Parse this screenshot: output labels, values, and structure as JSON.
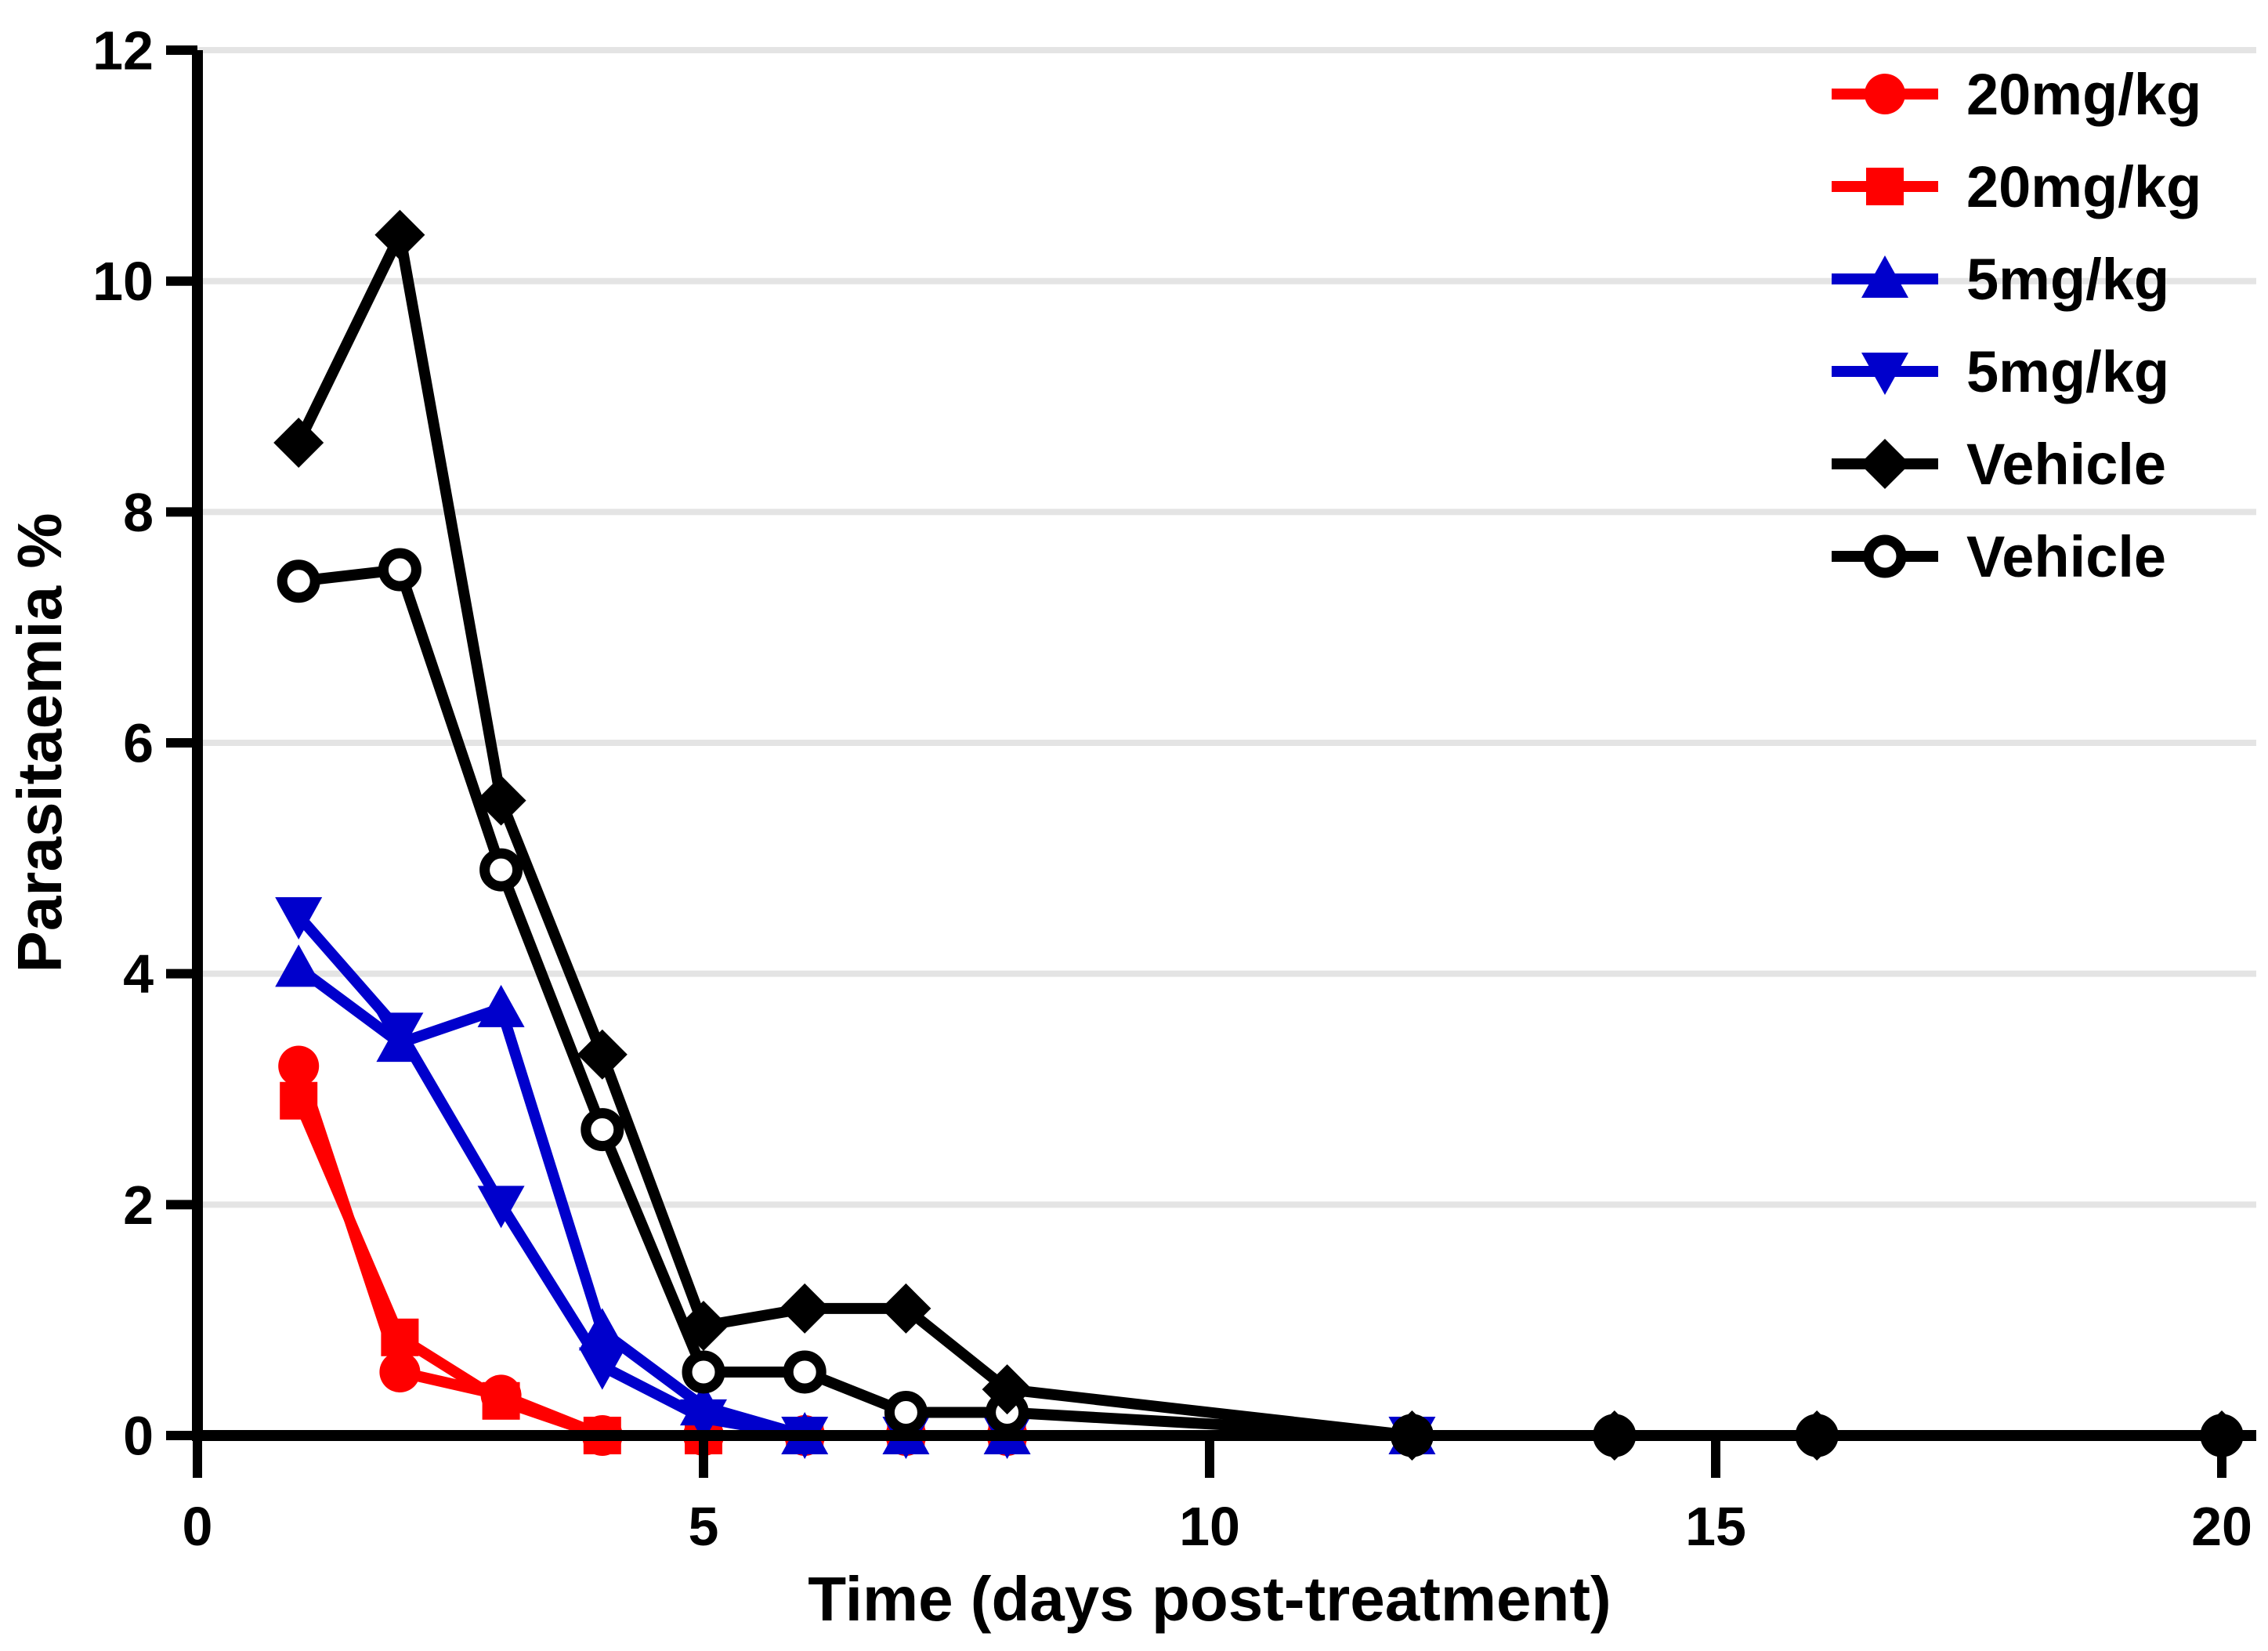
{
  "chart_data": {
    "type": "line",
    "title": "",
    "xlabel": "Time (days post-treatment)",
    "ylabel": "Parasitaemia %",
    "xlim": [
      0,
      20.4
    ],
    "ylim": [
      0,
      12
    ],
    "x_ticks": [
      0,
      5,
      10,
      15,
      20
    ],
    "y_ticks": [
      0,
      2,
      4,
      6,
      8,
      10,
      12
    ],
    "grid": "horizontal-light-gray",
    "gridline_color": "#e4e4e4",
    "axis_color": "#000000",
    "legend_position": "top-right",
    "colors": {
      "red": "#ff0000",
      "blue": "#0000cc",
      "black": "#000000"
    },
    "series": [
      {
        "name": "20mg/kg",
        "marker": "circle",
        "color": "#ff0000",
        "x": [
          1,
          2,
          3,
          4,
          5,
          6,
          7,
          8,
          12
        ],
        "y": [
          3.2,
          0.55,
          0.35,
          0,
          0,
          0,
          0,
          0,
          0
        ]
      },
      {
        "name": "20mg/kg",
        "marker": "square",
        "color": "#ff0000",
        "x": [
          1,
          2,
          3,
          4,
          5,
          6,
          7,
          8,
          12
        ],
        "y": [
          2.9,
          0.85,
          0.3,
          0,
          0,
          0,
          0,
          0,
          0
        ]
      },
      {
        "name": "5mg/kg",
        "marker": "triangle-up",
        "color": "#0000cc",
        "x": [
          1,
          2,
          3,
          4,
          5,
          6,
          7,
          8,
          12
        ],
        "y": [
          4.05,
          3.4,
          3.7,
          0.9,
          0.25,
          0,
          0,
          0,
          0
        ]
      },
      {
        "name": "5mg/kg",
        "marker": "triangle-down",
        "color": "#0000cc",
        "x": [
          1,
          2,
          3,
          4,
          5,
          6,
          7,
          8,
          12
        ],
        "y": [
          4.5,
          3.5,
          2.0,
          0.6,
          0.15,
          0,
          0,
          0,
          0
        ]
      },
      {
        "name": "Vehicle",
        "marker": "circle-open",
        "color": "#000000",
        "x": [
          1,
          2,
          3,
          4,
          5,
          6,
          7,
          8,
          12,
          14,
          16,
          20
        ],
        "y": [
          7.4,
          7.5,
          4.9,
          2.65,
          0.55,
          0.55,
          0.2,
          0.2,
          0,
          0,
          0,
          0
        ]
      },
      {
        "name": "Vehicle",
        "marker": "diamond",
        "color": "#000000",
        "x": [
          1,
          2,
          3,
          4,
          5,
          6,
          7,
          8,
          12,
          14,
          16,
          20
        ],
        "y": [
          8.6,
          10.4,
          5.5,
          3.3,
          0.95,
          1.1,
          1.1,
          0.4,
          0,
          0,
          0,
          0
        ]
      }
    ],
    "legend": [
      {
        "label": "20mg/kg",
        "marker": "circle",
        "color": "#ff0000"
      },
      {
        "label": "20mg/kg",
        "marker": "square",
        "color": "#ff0000"
      },
      {
        "label": "5mg/kg",
        "marker": "triangle-up",
        "color": "#0000cc"
      },
      {
        "label": "5mg/kg",
        "marker": "triangle-down",
        "color": "#0000cc"
      },
      {
        "label": "Vehicle",
        "marker": "diamond",
        "color": "#000000"
      },
      {
        "label": "Vehicle",
        "marker": "circle-open",
        "color": "#000000"
      }
    ]
  }
}
